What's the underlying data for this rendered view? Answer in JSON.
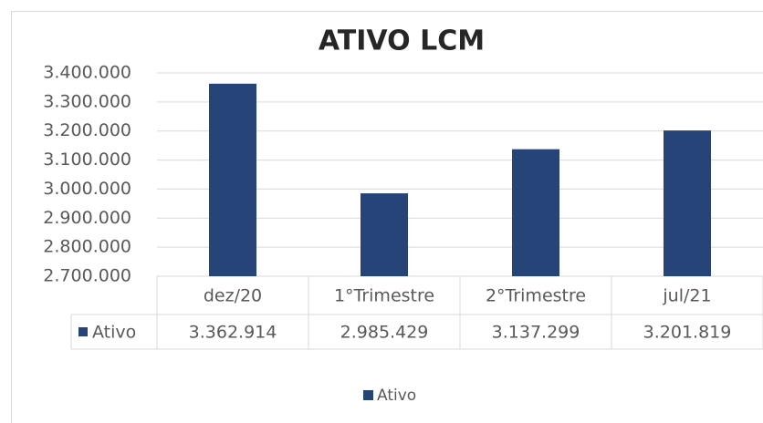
{
  "chart_data": {
    "type": "bar",
    "title": "ATIVO LCM",
    "categories": [
      "dez/20",
      "1°Trimestre",
      "2°Trimestre",
      "jul/21"
    ],
    "series": [
      {
        "name": "Ativo",
        "color": "#264478",
        "values": [
          3362914,
          2985429,
          3137299,
          3201819
        ],
        "value_labels": [
          "3.362.914",
          "2.985.429",
          "3.137.299",
          "3.201.819"
        ]
      }
    ],
    "ylim": [
      2700000,
      3400000
    ],
    "yticks": [
      {
        "value": 2700000,
        "label": "2.700.000"
      },
      {
        "value": 2800000,
        "label": "2.800.000"
      },
      {
        "value": 2900000,
        "label": "2.900.000"
      },
      {
        "value": 3000000,
        "label": "3.000.000"
      },
      {
        "value": 3100000,
        "label": "3.100.000"
      },
      {
        "value": 3200000,
        "label": "3.200.000"
      },
      {
        "value": 3300000,
        "label": "3.300.000"
      },
      {
        "value": 3400000,
        "label": "3.400.000"
      }
    ],
    "grid": true,
    "legend": "bottom"
  }
}
